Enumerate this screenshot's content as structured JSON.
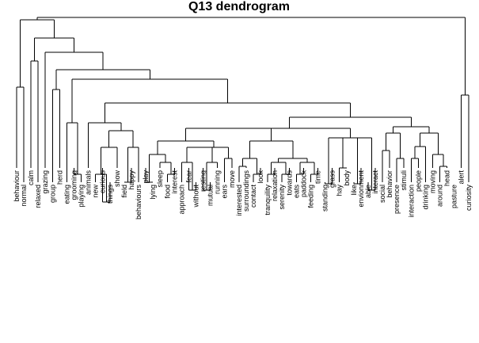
{
  "title": "Q13 dendrogram",
  "chart_data": {
    "type": "dendrogram",
    "title": "Q13 dendrogram",
    "leaves": [
      "behaviour",
      "normal",
      "calm",
      "relaxed",
      "grazing",
      "group",
      "herd",
      "eating",
      "grooming",
      "playing",
      "animals",
      "new",
      "curious",
      "things",
      "show",
      "field",
      "happy",
      "behaviours",
      "play",
      "lying",
      "sleep",
      "food",
      "interest",
      "approach",
      "fear",
      "without",
      "resting",
      "mutual",
      "running",
      "ears",
      "move",
      "interested",
      "surroundings",
      "contact",
      "look",
      "tranquility",
      "relaxation",
      "serenity",
      "towards",
      "eats",
      "paddock",
      "feeding",
      "time",
      "standing",
      "grass",
      "hay",
      "body",
      "like",
      "envionment",
      "able",
      "interact",
      "social",
      "behavior",
      "presence",
      "stimuli",
      "interaction",
      "people",
      "drinking",
      "moving",
      "around",
      "head",
      "pasture",
      "alert",
      "curiosity"
    ]
  }
}
